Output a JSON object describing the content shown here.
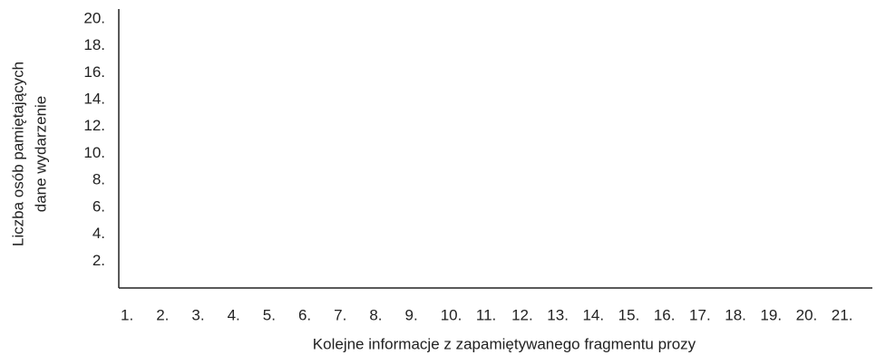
{
  "chart_data": {
    "type": "bar",
    "xlabel": "Kolejne informacje z zapamiętywanego fragmentu prozy",
    "ylabel": [
      "Liczba osób pamiętających",
      "dane wydarzenie"
    ],
    "categories": [
      "1.",
      "2.",
      "3.",
      "4.",
      "5.",
      "6.",
      "7.",
      "8.",
      "9.",
      "10.",
      "11.",
      "12.",
      "13.",
      "14.",
      "15.",
      "16.",
      "17.",
      "18.",
      "19.",
      "20.",
      "21."
    ],
    "ylim": [
      0,
      21
    ],
    "yticks": [
      {
        "value": 2,
        "label": "2."
      },
      {
        "value": 4,
        "label": "4."
      },
      {
        "value": 6,
        "label": "6."
      },
      {
        "value": 8,
        "label": "8."
      },
      {
        "value": 10,
        "label": "10."
      },
      {
        "value": 12,
        "label": "12."
      },
      {
        "value": 14,
        "label": "14."
      },
      {
        "value": 16,
        "label": "16."
      },
      {
        "value": 18,
        "label": "18."
      },
      {
        "value": 20,
        "label": "20."
      }
    ]
  }
}
